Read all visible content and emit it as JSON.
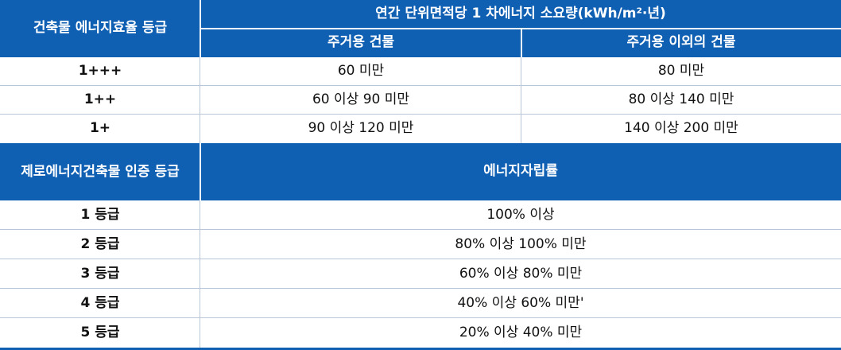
{
  "section1": {
    "grade_header": "건축물 에너지효율 등급",
    "main_header": "연간 단위면적당 1 차에너지 소요량(kWh/m²·년)",
    "sub_header_residential": "주거용 건물",
    "sub_header_other": "주거용 이외의 건물",
    "rows": [
      {
        "grade": "1+++",
        "residential": "60 미만",
        "other": "80 미만"
      },
      {
        "grade": "1++",
        "residential": "60 이상 90 미만",
        "other": "80 이상 140 미만"
      },
      {
        "grade": "1+",
        "residential": "90 이상 120 미만",
        "other": "140 이상 200 미만"
      }
    ]
  },
  "section2": {
    "grade_header": "제로에너지건축물 인증 등급",
    "rate_header": "에너지자립률",
    "rows": [
      {
        "grade": "1 등급",
        "rate": "100% 이상"
      },
      {
        "grade": "2 등급",
        "rate": "80% 이상 100% 미만"
      },
      {
        "grade": "3 등급",
        "rate": "60% 이상 80% 미만"
      },
      {
        "grade": "4 등급",
        "rate": "40% 이상 60% 미만'"
      },
      {
        "grade": "5 등급",
        "rate": "20% 이상 40% 미만"
      }
    ]
  },
  "colors": {
    "header_background": "#0f5fb3",
    "header_text": "#ffffff",
    "border": "#b9c6d8"
  }
}
